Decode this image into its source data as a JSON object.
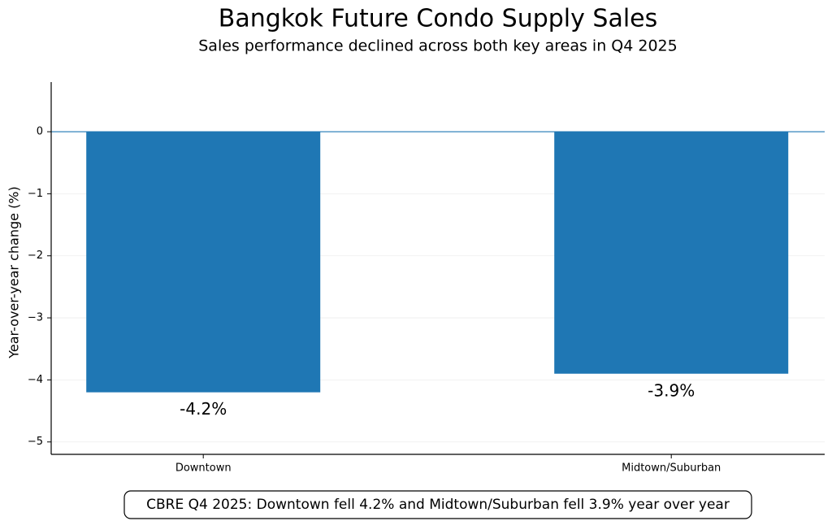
{
  "chart_data": {
    "type": "bar",
    "title": "Bangkok Future Condo Supply Sales",
    "subtitle": "Sales performance declined across both key areas in Q4 2025",
    "y_label": "Year-over-year change (%)",
    "categories": [
      "Downtown",
      "Midtown/Suburban"
    ],
    "values": [
      -4.2,
      -3.9
    ],
    "value_labels": [
      "-4.2%",
      "-3.9%"
    ],
    "color": "#1f77b4",
    "ylim": [
      -5.2,
      0.8
    ],
    "yticks": [
      {
        "value": -5,
        "label": "−5"
      },
      {
        "value": -4,
        "label": "−4"
      },
      {
        "value": -3,
        "label": "−3"
      },
      {
        "value": -2,
        "label": "−2"
      },
      {
        "value": -1,
        "label": "−1"
      },
      0
    ],
    "grid": true,
    "zero_line_color": "#1f77b4",
    "annotation": "CBRE Q4 2025: Downtown fell 4.2% and Midtown/Suburban fell 3.9% year over year"
  }
}
